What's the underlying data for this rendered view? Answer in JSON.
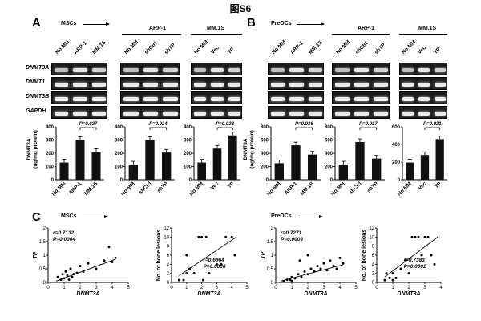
{
  "figure_title": "图S6",
  "panels": {
    "A": "A",
    "B": "B",
    "C": "C"
  },
  "groups": {
    "mscs": "MSCs",
    "preocs": "PreOCs",
    "arp1": "ARP-1",
    "mm1s": "MM.1S"
  },
  "gel_rows": [
    "DNMT3A",
    "DNMT1",
    "DNMT3B",
    "GAPDH"
  ],
  "gel_columns": {
    "a1": [
      "No MM",
      "ARP-1",
      "MM.1S"
    ],
    "a2": [
      "No MM",
      "shCtrl",
      "shTP"
    ],
    "a3": [
      "No MM",
      "Vec",
      "TP"
    ],
    "b1": [
      "No MM",
      "ARP-1",
      "MM.1S"
    ],
    "b2": [
      "No MM",
      "shCtrl",
      "shTP"
    ],
    "b3": [
      "No MM",
      "Vec",
      "TP"
    ]
  },
  "bar_ylabel": "DNMT3A\n(ng/mg protein)",
  "scatter_labels": {
    "x": "DNMT3A",
    "y_tp": "TP",
    "y_bone": "No. of bone lesions"
  },
  "chart_data": [
    {
      "type": "bar",
      "id": "a1",
      "categories": [
        "No MM",
        "ARP-1",
        "MM.1S"
      ],
      "values": [
        130,
        300,
        210
      ],
      "ylim": [
        0,
        400
      ],
      "yticks": [
        0,
        100,
        200,
        300,
        400
      ],
      "pvalue": "P=0.027",
      "sig_pair": [
        1,
        2
      ]
    },
    {
      "type": "bar",
      "id": "a2",
      "categories": [
        "No MM",
        "shCtrl",
        "shTP"
      ],
      "values": [
        115,
        300,
        205
      ],
      "ylim": [
        0,
        400
      ],
      "yticks": [
        0,
        100,
        200,
        300,
        400
      ],
      "pvalue": "P=0.024",
      "sig_pair": [
        1,
        2
      ]
    },
    {
      "type": "bar",
      "id": "a3",
      "categories": [
        "No MM",
        "Vec",
        "TP"
      ],
      "values": [
        130,
        235,
        335
      ],
      "ylim": [
        0,
        400
      ],
      "yticks": [
        0,
        100,
        200,
        300,
        400
      ],
      "pvalue": "P=0.033",
      "sig_pair": [
        1,
        2
      ]
    },
    {
      "type": "bar",
      "id": "b1",
      "categories": [
        "No MM",
        "ARP-1",
        "MM.1S"
      ],
      "values": [
        250,
        520,
        380
      ],
      "ylim": [
        0,
        800
      ],
      "yticks": [
        0,
        200,
        400,
        600,
        800
      ],
      "pvalue": "P=0.036",
      "sig_pair": [
        1,
        2
      ]
    },
    {
      "type": "bar",
      "id": "b2",
      "categories": [
        "No MM",
        "shCtrl",
        "shTP"
      ],
      "values": [
        230,
        570,
        320
      ],
      "ylim": [
        0,
        800
      ],
      "yticks": [
        0,
        200,
        400,
        600,
        800
      ],
      "pvalue": "P=0.017",
      "sig_pair": [
        1,
        2
      ]
    },
    {
      "type": "bar",
      "id": "b3",
      "categories": [
        "No MM",
        "Vec",
        "TP"
      ],
      "values": [
        195,
        280,
        460
      ],
      "ylim": [
        0,
        600
      ],
      "yticks": [
        0,
        200,
        400,
        600
      ],
      "pvalue": "P=0.021",
      "sig_pair": [
        1,
        2
      ]
    },
    {
      "type": "scatter",
      "id": "c1",
      "xlabel": "DNMT3A",
      "ylabel": "TP",
      "xlim": [
        0,
        5
      ],
      "ylim": [
        0,
        2
      ],
      "xticks": [
        0,
        1,
        2,
        3,
        4,
        5
      ],
      "yticks": [
        0,
        0.5,
        1.0,
        1.5,
        2.0
      ],
      "stats": [
        "r=0.7132",
        "P=0.0064"
      ],
      "points": [
        [
          0.6,
          0.2
        ],
        [
          0.8,
          0.1
        ],
        [
          0.9,
          0.3
        ],
        [
          1.0,
          0.15
        ],
        [
          1.1,
          0.4
        ],
        [
          1.2,
          0.25
        ],
        [
          1.3,
          0.1
        ],
        [
          1.4,
          0.5
        ],
        [
          1.5,
          0.2
        ],
        [
          1.6,
          0.3
        ],
        [
          1.8,
          0.35
        ],
        [
          2.0,
          0.6
        ],
        [
          2.2,
          0.4
        ],
        [
          2.5,
          0.7
        ],
        [
          3.0,
          0.5
        ],
        [
          3.5,
          0.8
        ],
        [
          3.8,
          1.3
        ],
        [
          4.0,
          0.75
        ],
        [
          4.2,
          0.9
        ]
      ],
      "fit": [
        [
          0.5,
          0.05
        ],
        [
          4.2,
          0.85
        ]
      ]
    },
    {
      "type": "scatter",
      "id": "c2",
      "xlabel": "DNMT3A",
      "ylabel": "No. of bone lesions",
      "xlim": [
        0,
        5
      ],
      "ylim": [
        0,
        12
      ],
      "xticks": [
        0,
        1,
        2,
        3,
        4,
        5
      ],
      "yticks": [
        0,
        2,
        4,
        6,
        8,
        10,
        12
      ],
      "stats": [
        "r=0.6964",
        "P=0.0008"
      ],
      "points": [
        [
          0.5,
          0.5
        ],
        [
          0.8,
          0.5
        ],
        [
          1.0,
          2
        ],
        [
          1.2,
          3
        ],
        [
          1.5,
          2
        ],
        [
          1.8,
          10
        ],
        [
          2.0,
          10
        ],
        [
          2.1,
          0.5
        ],
        [
          2.3,
          10
        ],
        [
          2.5,
          2
        ],
        [
          3.0,
          4
        ],
        [
          3.3,
          4
        ],
        [
          3.6,
          10
        ],
        [
          4.0,
          10
        ],
        [
          4.2,
          6
        ],
        [
          1.0,
          6
        ]
      ],
      "fit": [
        [
          0.5,
          1.5
        ],
        [
          4.3,
          10
        ]
      ]
    },
    {
      "type": "scatter",
      "id": "c3",
      "xlabel": "DNMT3A",
      "ylabel": "TP",
      "xlim": [
        0,
        5
      ],
      "ylim": [
        0,
        2
      ],
      "xticks": [
        0,
        1,
        2,
        3,
        4,
        5
      ],
      "yticks": [
        0,
        0.5,
        1.0,
        1.5,
        2.0
      ],
      "stats": [
        "r=0.7271",
        "P=0.0003"
      ],
      "points": [
        [
          0.5,
          0.05
        ],
        [
          0.7,
          0.1
        ],
        [
          0.9,
          0.1
        ],
        [
          1.0,
          0.2
        ],
        [
          1.2,
          0.15
        ],
        [
          1.4,
          0.3
        ],
        [
          1.6,
          0.2
        ],
        [
          1.8,
          0.4
        ],
        [
          2.0,
          0.3
        ],
        [
          2.2,
          0.5
        ],
        [
          2.4,
          0.4
        ],
        [
          2.6,
          0.6
        ],
        [
          2.8,
          0.5
        ],
        [
          3.0,
          0.7
        ],
        [
          3.2,
          0.45
        ],
        [
          3.4,
          0.8
        ],
        [
          3.6,
          0.6
        ],
        [
          3.8,
          0.5
        ],
        [
          4.0,
          0.9
        ],
        [
          2.0,
          1.0
        ],
        [
          1.5,
          0.8
        ],
        [
          4.2,
          0.7
        ],
        [
          1.0,
          0.05
        ]
      ],
      "fit": [
        [
          0.3,
          0.05
        ],
        [
          4.2,
          0.65
        ]
      ]
    },
    {
      "type": "scatter",
      "id": "c4",
      "xlabel": "DNMT3A",
      "ylabel": "No. of bone lesions",
      "xlim": [
        0,
        4
      ],
      "ylim": [
        0,
        12
      ],
      "xticks": [
        0,
        1,
        2,
        3,
        4
      ],
      "yticks": [
        0,
        2,
        4,
        6,
        8,
        10,
        12
      ],
      "stats": [
        "r=0.7383",
        "P=0.0002"
      ],
      "points": [
        [
          0.5,
          0.5
        ],
        [
          0.8,
          1
        ],
        [
          1.0,
          2
        ],
        [
          1.2,
          1
        ],
        [
          1.5,
          3
        ],
        [
          1.8,
          5
        ],
        [
          2.0,
          2
        ],
        [
          2.2,
          10
        ],
        [
          2.4,
          10
        ],
        [
          2.6,
          10
        ],
        [
          2.8,
          6
        ],
        [
          3.0,
          10
        ],
        [
          3.2,
          10
        ],
        [
          3.4,
          6
        ],
        [
          3.6,
          4
        ],
        [
          0.6,
          2
        ],
        [
          1.0,
          0.5
        ]
      ],
      "fit": [
        [
          0.5,
          1.2
        ],
        [
          3.8,
          10
        ]
      ]
    }
  ]
}
